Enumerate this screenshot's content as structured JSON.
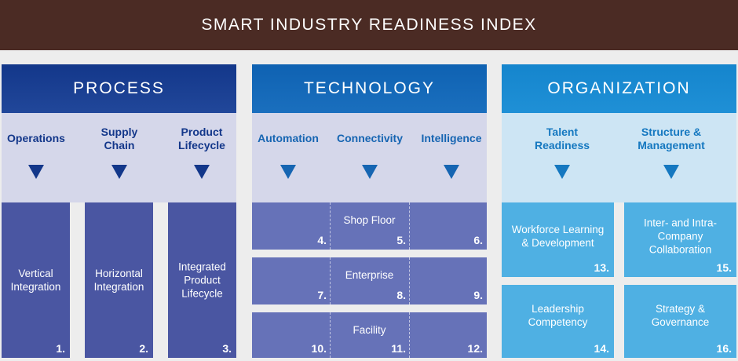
{
  "title": "SMART INDUSTRY READINESS INDEX",
  "colors": {
    "title_bg": "#4b2b24",
    "process": "#1b3e8e",
    "technology": "#1667b4",
    "organization": "#1a8bd2",
    "process_cell": "#4a56a2",
    "tech_cell": "#6672b8",
    "org_cell": "#4fb0e3"
  },
  "process": {
    "header": "PROCESS",
    "subs": [
      "Operations",
      "Supply\nChain",
      "Product\nLifecycle"
    ],
    "cells": [
      {
        "label": "Vertical\nIntegration",
        "num": "1."
      },
      {
        "label": "Horizontal\nIntegration",
        "num": "2."
      },
      {
        "label": "Integrated\nProduct\nLifecycle",
        "num": "3."
      }
    ]
  },
  "technology": {
    "header": "TECHNOLOGY",
    "subs": [
      "Automation",
      "Connectivity",
      "Intelligence"
    ],
    "rows": [
      {
        "label": "Shop Floor",
        "nums": [
          "4.",
          "5.",
          "6."
        ]
      },
      {
        "label": "Enterprise",
        "nums": [
          "7.",
          "8.",
          "9."
        ]
      },
      {
        "label": "Facility",
        "nums": [
          "10.",
          "11.",
          "12."
        ]
      }
    ]
  },
  "organization": {
    "header": "ORGANIZATION",
    "subs": [
      "Talent\nReadiness",
      "Structure &\nManagement"
    ],
    "cells": [
      {
        "label": "Workforce Learning\n& Development",
        "num": "13."
      },
      {
        "label": "Inter- and Intra-\nCompany\nCollaboration",
        "num": "15."
      },
      {
        "label": "Leadership\nCompetency",
        "num": "14."
      },
      {
        "label": "Strategy &\nGovernance",
        "num": "16."
      }
    ]
  }
}
